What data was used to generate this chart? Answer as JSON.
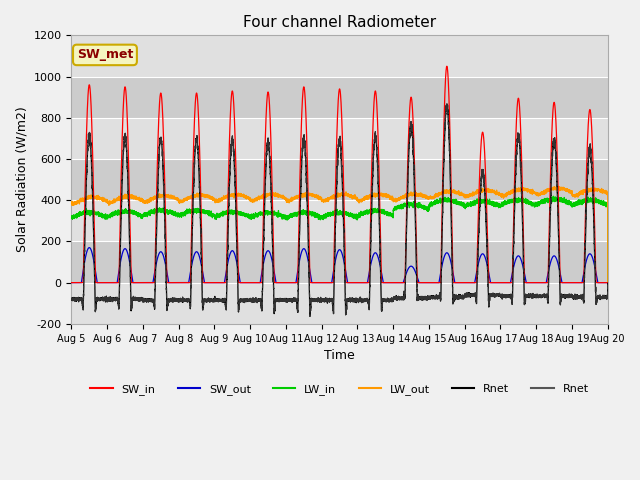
{
  "title": "Four channel Radiometer",
  "xlabel": "Time",
  "ylabel": "Solar Radiation (W/m2)",
  "ylim": [
    -200,
    1200
  ],
  "xlim": [
    0,
    15
  ],
  "annotation_text": "SW_met",
  "fig_bg_color": "#f0f0f0",
  "plot_bg_color": "#d8d8d8",
  "grid_color": "#e8e8e8",
  "colors": {
    "SW_in": "#ff0000",
    "SW_out": "#0000cc",
    "LW_in": "#00cc00",
    "LW_out": "#ff9900",
    "Rnet_black": "#000000",
    "Rnet_dark": "#555555"
  },
  "yticks": [
    -200,
    0,
    200,
    400,
    600,
    800,
    1000,
    1200
  ],
  "xtick_labels": [
    "Aug 5",
    "Aug 6",
    "Aug 7",
    "Aug 8",
    "Aug 9",
    "Aug 10",
    "Aug 11",
    "Aug 12",
    "Aug 13",
    "Aug 14",
    "Aug 15",
    "Aug 16",
    "Aug 17",
    "Aug 18",
    "Aug 19",
    "Aug 20"
  ],
  "sw_in_peaks": [
    960,
    950,
    920,
    920,
    930,
    925,
    950,
    940,
    930,
    900,
    1050,
    730,
    895,
    875,
    840
  ],
  "sw_out_peaks": [
    170,
    165,
    150,
    150,
    155,
    155,
    165,
    160,
    145,
    80,
    145,
    140,
    130,
    130,
    140
  ],
  "lw_in_base": [
    315,
    320,
    325,
    325,
    318,
    315,
    315,
    315,
    325,
    355,
    375,
    370,
    375,
    380,
    375
  ],
  "lw_out_base": [
    385,
    388,
    392,
    395,
    397,
    398,
    398,
    398,
    398,
    400,
    413,
    418,
    422,
    428,
    422
  ],
  "rnet_night": [
    -80,
    -80,
    -85,
    -85,
    -85,
    -85,
    -85,
    -85,
    -85,
    -75,
    -70,
    -60,
    -65,
    -65,
    -70
  ]
}
